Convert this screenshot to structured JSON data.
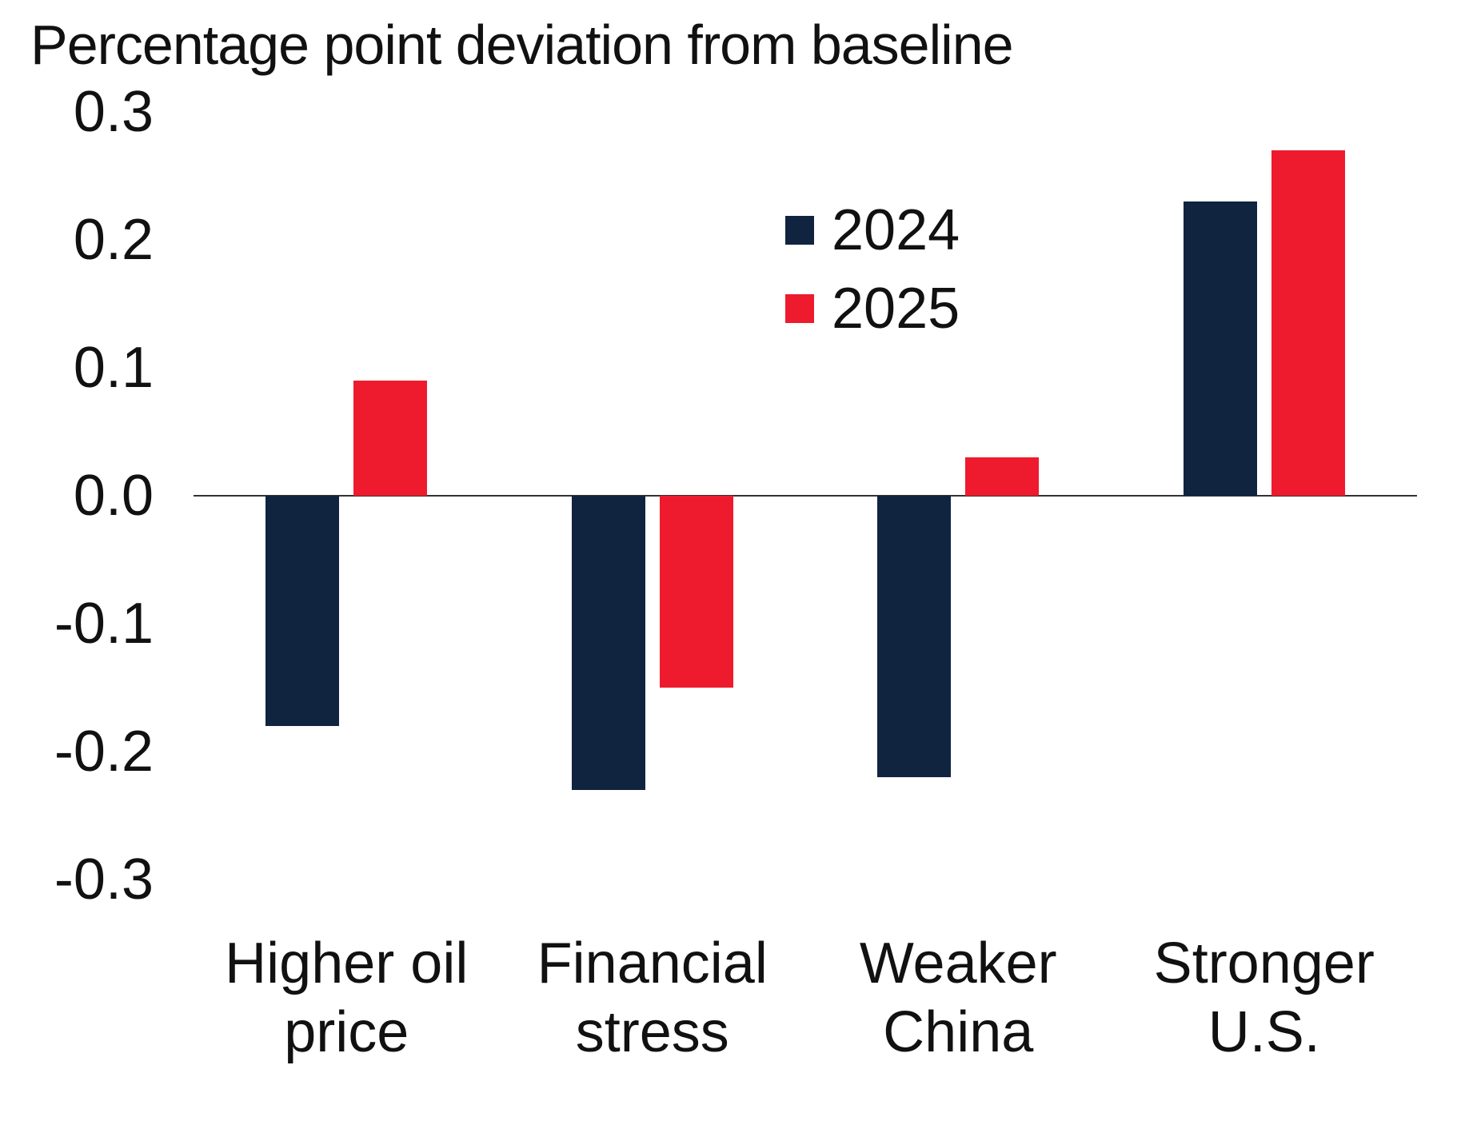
{
  "title": "Percentage point deviation from baseline",
  "colors": {
    "series_2024": "#102440",
    "series_2025": "#ed1b2d",
    "axis_line": "#333333",
    "text": "#111111",
    "background": "#ffffff"
  },
  "legend": {
    "items": [
      {
        "label": "2024",
        "color": "#102440"
      },
      {
        "label": "2025",
        "color": "#ed1b2d"
      }
    ]
  },
  "chart_data": {
    "type": "bar",
    "title": "Percentage point deviation from baseline",
    "categories": [
      "Higher oil\nprice",
      "Financial\nstress",
      "Weaker\nChina",
      "Stronger\nU.S."
    ],
    "series": [
      {
        "name": "2024",
        "color": "#102440",
        "values": [
          -0.18,
          -0.23,
          -0.22,
          0.23
        ]
      },
      {
        "name": "2025",
        "color": "#ed1b2d",
        "values": [
          0.09,
          -0.15,
          0.03,
          0.27
        ]
      }
    ],
    "xlabel": "",
    "ylabel": "Percentage point deviation from baseline",
    "ylim": [
      -0.3,
      0.3
    ],
    "yticks": [
      0.3,
      0.2,
      0.1,
      0.0,
      -0.1,
      -0.2,
      -0.3
    ],
    "ytick_labels": [
      "0.3",
      "0.2",
      "0.1",
      "0.0",
      "-0.1",
      "-0.2",
      "-0.3"
    ],
    "grid": false,
    "legend_position": "upper center"
  }
}
